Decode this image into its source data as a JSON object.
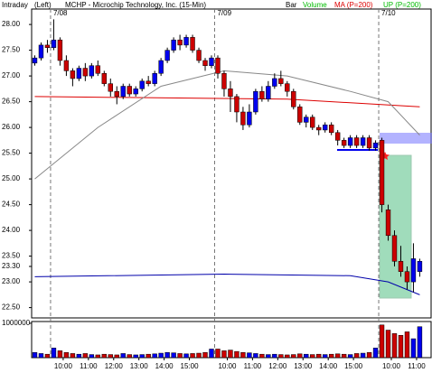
{
  "chart_data": {
    "type": "candlestick",
    "header": {
      "mode": "Intraday",
      "side": "(Left)",
      "title": "MCHP - Microchip Technology, Inc. (15-Min)",
      "bar": "Bar",
      "volume": "Volume",
      "ma": "MA (P=200)",
      "up": "UP (P=200)"
    },
    "x": [
      0,
      1,
      2,
      3,
      4,
      5,
      6,
      7,
      8,
      9,
      10,
      11,
      12,
      13,
      14,
      15,
      16,
      17,
      18,
      19,
      20,
      21,
      22,
      23,
      24,
      25,
      26,
      27,
      28,
      29,
      30,
      31,
      32,
      33,
      34,
      35,
      36,
      37,
      38,
      39,
      40,
      41,
      42,
      43,
      44,
      45,
      46,
      47,
      48,
      49,
      50,
      51,
      52,
      53,
      54,
      55,
      56,
      57,
      58,
      59,
      60,
      61
    ],
    "open": [
      27.25,
      27.35,
      27.6,
      27.55,
      27.7,
      27.3,
      27.1,
      26.95,
      27.15,
      27.0,
      27.2,
      27.05,
      26.85,
      26.7,
      26.6,
      26.8,
      26.65,
      26.75,
      26.9,
      26.85,
      27.05,
      27.3,
      27.5,
      27.7,
      27.6,
      27.75,
      27.5,
      27.3,
      27.2,
      27.35,
      27.05,
      26.75,
      26.6,
      26.3,
      26.05,
      26.3,
      26.7,
      26.55,
      26.8,
      26.95,
      26.85,
      26.7,
      26.4,
      26.1,
      26.2,
      26.0,
      25.95,
      26.05,
      25.9,
      25.75,
      25.65,
      25.8,
      25.65,
      25.8,
      25.6,
      25.75,
      24.4,
      23.9,
      23.4,
      23.2,
      23.0,
      23.2
    ],
    "high": [
      27.4,
      27.65,
      27.7,
      28.1,
      27.75,
      27.4,
      27.15,
      27.2,
      27.25,
      27.25,
      27.3,
      27.1,
      26.95,
      26.8,
      26.85,
      26.85,
      26.8,
      26.95,
      27.0,
      27.1,
      27.35,
      27.55,
      27.75,
      27.8,
      27.8,
      27.8,
      27.55,
      27.35,
      27.4,
      27.4,
      27.1,
      26.9,
      26.65,
      26.4,
      26.45,
      26.75,
      26.8,
      26.9,
      27.05,
      27.1,
      26.9,
      26.75,
      26.45,
      26.25,
      26.25,
      26.05,
      26.1,
      26.1,
      25.95,
      25.8,
      25.85,
      25.85,
      25.85,
      25.85,
      25.75,
      25.8,
      24.5,
      24.0,
      23.7,
      23.3,
      23.75,
      23.45
    ],
    "low": [
      27.2,
      27.3,
      27.45,
      27.5,
      27.2,
      27.0,
      26.8,
      26.9,
      26.9,
      26.95,
      27.0,
      26.8,
      26.6,
      26.45,
      26.55,
      26.6,
      26.6,
      26.7,
      26.8,
      26.8,
      27.0,
      27.25,
      27.45,
      27.5,
      27.55,
      27.45,
      27.25,
      27.1,
      27.15,
      26.95,
      26.6,
      26.3,
      26.1,
      25.95,
      26.0,
      26.25,
      26.5,
      26.5,
      26.75,
      26.8,
      26.6,
      26.35,
      26.05,
      26.0,
      25.95,
      25.85,
      25.9,
      25.85,
      25.65,
      25.6,
      25.6,
      25.6,
      25.6,
      25.55,
      25.55,
      24.35,
      23.8,
      23.3,
      23.1,
      22.85,
      22.8,
      23.1
    ],
    "close": [
      27.35,
      27.6,
      27.55,
      27.7,
      27.3,
      27.1,
      26.95,
      27.15,
      27.0,
      27.2,
      27.05,
      26.85,
      26.7,
      26.6,
      26.8,
      26.65,
      26.75,
      26.9,
      26.85,
      27.05,
      27.3,
      27.5,
      27.7,
      27.6,
      27.75,
      27.5,
      27.3,
      27.2,
      27.35,
      27.05,
      26.75,
      26.6,
      26.3,
      26.05,
      26.3,
      26.7,
      26.55,
      26.8,
      26.95,
      26.85,
      26.7,
      26.4,
      26.1,
      26.2,
      26.0,
      25.95,
      26.05,
      25.9,
      25.75,
      25.65,
      25.8,
      25.65,
      25.8,
      25.6,
      25.7,
      24.5,
      23.9,
      23.4,
      23.2,
      23.0,
      23.45,
      23.4
    ],
    "volume": [
      150000,
      120000,
      100000,
      280000,
      200000,
      150000,
      120000,
      100000,
      120000,
      90000,
      80000,
      100000,
      90000,
      80000,
      120000,
      90000,
      80000,
      90000,
      100000,
      110000,
      130000,
      150000,
      140000,
      120000,
      110000,
      120000,
      130000,
      150000,
      250000,
      250000,
      200000,
      220000,
      180000,
      150000,
      140000,
      120000,
      100000,
      90000,
      100000,
      90000,
      80000,
      90000,
      110000,
      100000,
      90000,
      100000,
      90000,
      100000,
      110000,
      100000,
      90000,
      120000,
      130000,
      150000,
      280000,
      950000,
      800000,
      700000,
      650000,
      750000,
      550000,
      900000
    ],
    "up_color": "#0000ee",
    "down_color": "#cc0000",
    "lines": [
      {
        "color": "#dd0000",
        "x": [
          0,
          40,
          61
        ],
        "values": [
          26.6,
          26.55,
          26.4
        ]
      },
      {
        "color": "#888888",
        "x": [
          0,
          10,
          20,
          30,
          40,
          50,
          56,
          61
        ],
        "values": [
          25.0,
          26.0,
          26.8,
          27.1,
          27.0,
          26.7,
          26.5,
          25.85
        ]
      },
      {
        "color": "#0000aa",
        "x": [
          0,
          30,
          50,
          56,
          61
        ],
        "values": [
          23.1,
          23.15,
          23.12,
          23.0,
          22.75
        ]
      }
    ],
    "xlim": [
      0,
      63.3
    ],
    "ylim": [
      22.3,
      28.3
    ],
    "yticks": [
      {
        "value": 28,
        "label": "28.00"
      },
      {
        "value": 27.5,
        "label": "27.50"
      },
      {
        "value": 27,
        "label": "27.00"
      },
      {
        "value": 26.5,
        "label": "26.50"
      },
      {
        "value": 26,
        "label": "26.00"
      },
      {
        "value": 25.5,
        "label": "25.50"
      },
      {
        "value": 25,
        "label": "25.00"
      },
      {
        "value": 24.5,
        "label": "24.50"
      },
      {
        "value": 24,
        "label": "24.00"
      },
      {
        "value": 23.5,
        "label": "23.50"
      },
      {
        "value": 23.3,
        "label": "23.30"
      },
      {
        "value": 23,
        "label": "23.00"
      },
      {
        "value": 22.5,
        "label": "22.50"
      }
    ],
    "vlim": [
      0,
      1050000
    ],
    "vticks": [
      1000000
    ],
    "xticks": [
      {
        "value": 5,
        "label": "10:00"
      },
      {
        "value": 9,
        "label": "11:00"
      },
      {
        "value": 13,
        "label": "12:00"
      },
      {
        "value": 17,
        "label": "13:00"
      },
      {
        "value": 21,
        "label": "14:00"
      },
      {
        "value": 25,
        "label": "15:00"
      },
      {
        "value": 31,
        "label": "10:00"
      },
      {
        "value": 35,
        "label": "11:00"
      },
      {
        "value": 39,
        "label": "12:00"
      },
      {
        "value": 43,
        "label": "13:00"
      },
      {
        "value": 47,
        "label": "14:00"
      },
      {
        "value": 51,
        "label": "15:00"
      },
      {
        "value": 57,
        "label": "10:00"
      },
      {
        "value": 61,
        "label": "11:00"
      }
    ],
    "sessions": [
      {
        "x": 3,
        "label": "7/08"
      },
      {
        "x": 29,
        "label": "7/09"
      },
      {
        "x": 55,
        "label": "7/10"
      }
    ]
  }
}
